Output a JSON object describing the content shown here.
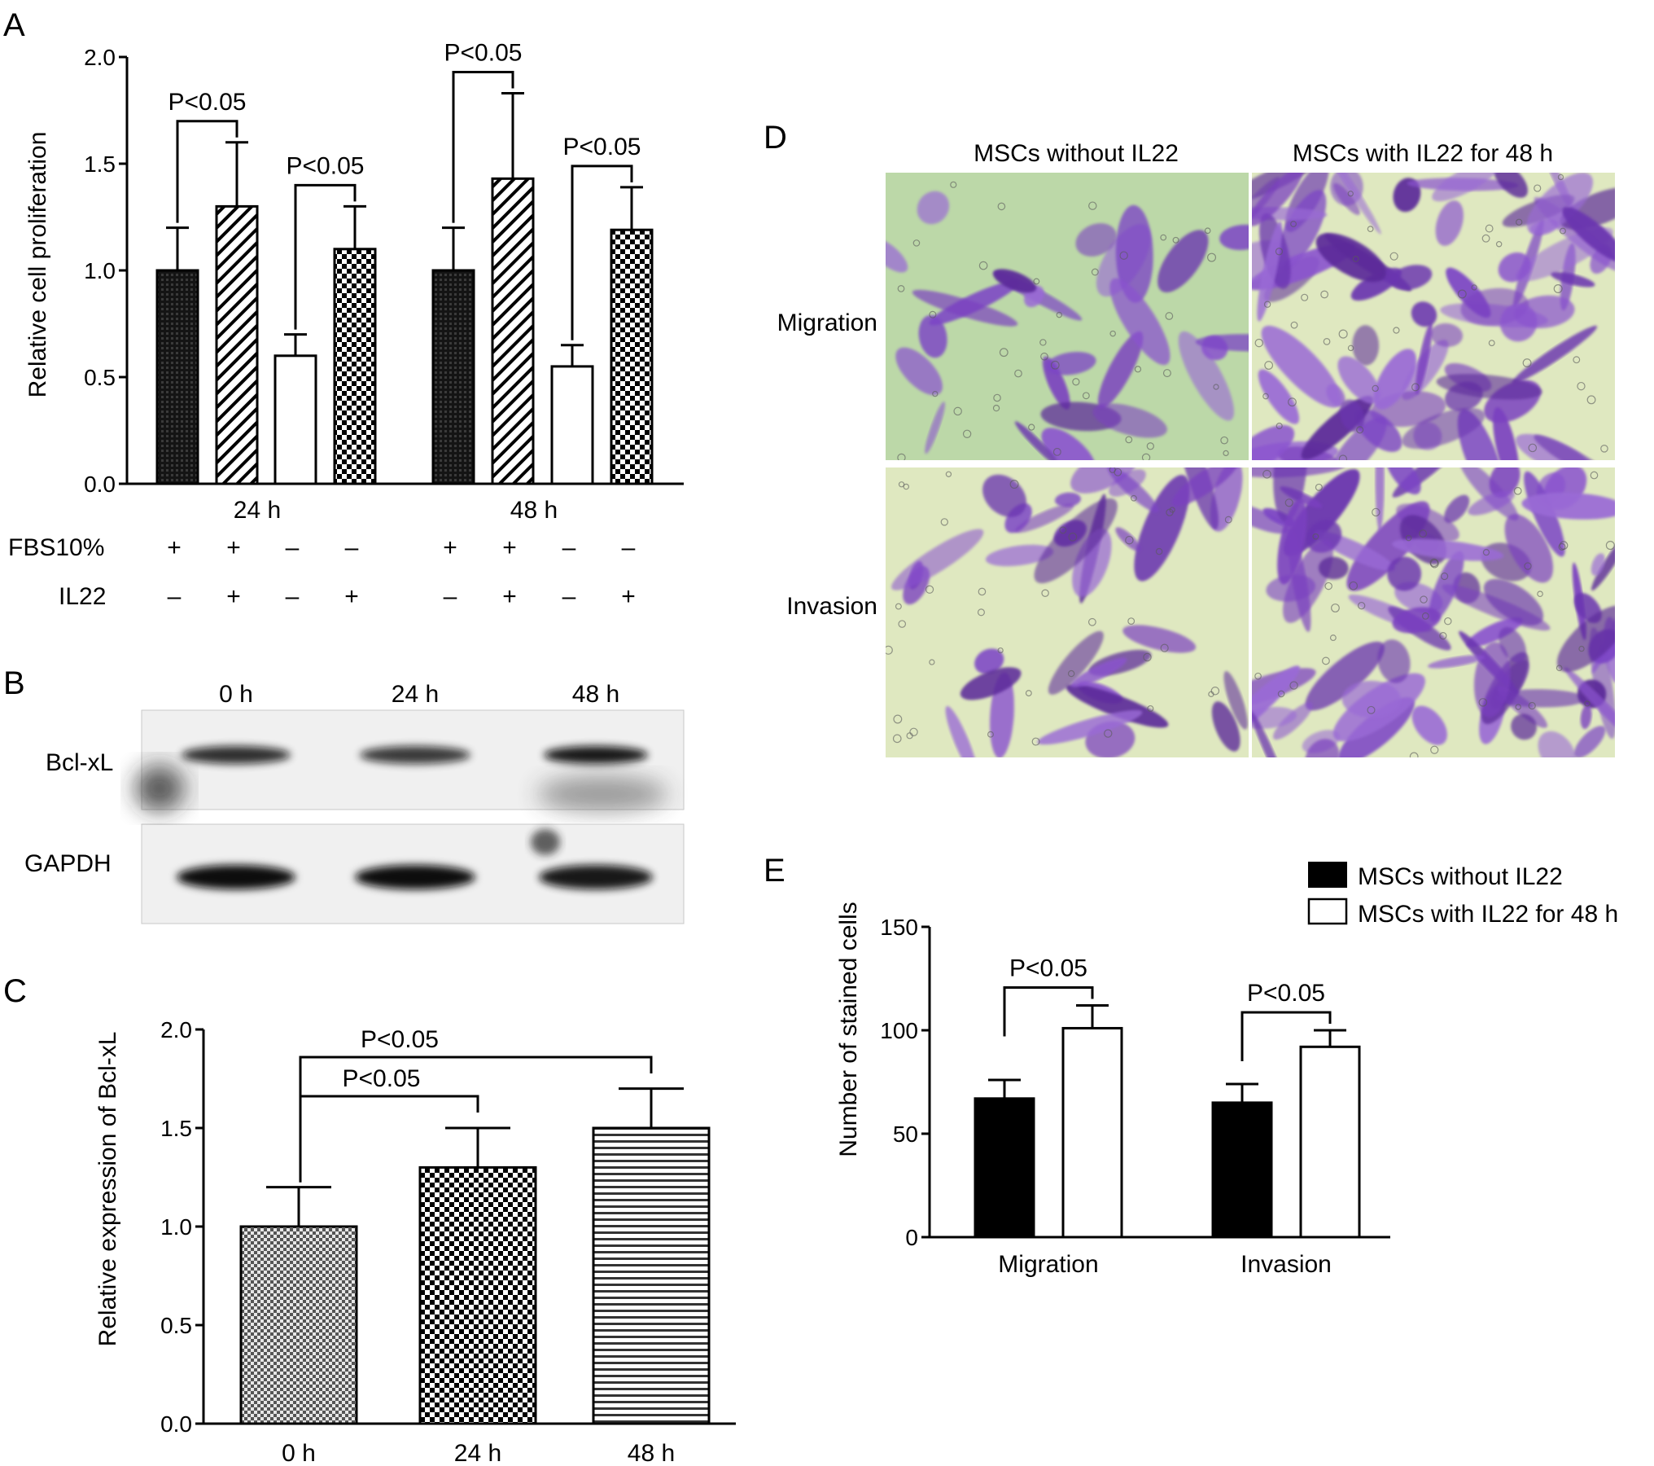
{
  "panel_letters": {
    "a": "A",
    "b": "B",
    "c": "C",
    "d": "D",
    "e": "E"
  },
  "colors": {
    "ink": "#000000",
    "background": "#ffffff",
    "stain_purple": "#7a3fc0",
    "stain_background": "#dfe8c0",
    "migration_pale_green": "#bcd8a8"
  },
  "chart_data": [
    {
      "panel": "A",
      "type": "bar",
      "ylabel": "Relative cell proliferation",
      "xlabel": "",
      "ylim": [
        0,
        2.0
      ],
      "yticks": [
        "0.0",
        "0.5",
        "1.0",
        "1.5",
        "2.0"
      ],
      "groups": [
        "24 h",
        "48 h"
      ],
      "bar_patterns": [
        "dark",
        "diagonal",
        "white",
        "checker"
      ],
      "bars": [
        {
          "group": "24 h",
          "value": 1.0,
          "error": 0.2
        },
        {
          "group": "24 h",
          "value": 1.3,
          "error": 0.3
        },
        {
          "group": "24 h",
          "value": 0.6,
          "error": 0.1
        },
        {
          "group": "24 h",
          "value": 1.1,
          "error": 0.2
        },
        {
          "group": "48 h",
          "value": 1.0,
          "error": 0.2
        },
        {
          "group": "48 h",
          "value": 1.43,
          "error": 0.4
        },
        {
          "group": "48 h",
          "value": 0.55,
          "error": 0.1
        },
        {
          "group": "48 h",
          "value": 1.19,
          "error": 0.2
        }
      ],
      "conditions": [
        {
          "label": "FBS10%",
          "values": [
            "+",
            "+",
            "–",
            "–",
            "+",
            "+",
            "–",
            "–"
          ]
        },
        {
          "label": "IL22",
          "values": [
            "–",
            "+",
            "–",
            "+",
            "–",
            "+",
            "–",
            "+"
          ]
        }
      ],
      "annotations": [
        {
          "from": 0,
          "to": 1,
          "text": "P<0.05"
        },
        {
          "from": 2,
          "to": 3,
          "text": "P<0.05"
        },
        {
          "from": 4,
          "to": 5,
          "text": "P<0.05"
        },
        {
          "from": 6,
          "to": 7,
          "text": "P<0.05"
        }
      ]
    },
    {
      "panel": "C",
      "type": "bar",
      "ylabel": "Relative expression of Bcl-xL",
      "xlabel": "",
      "ylim": [
        0,
        2.0
      ],
      "yticks": [
        "0.0",
        "0.5",
        "1.0",
        "1.5",
        "2.0"
      ],
      "categories": [
        "0 h",
        "24 h",
        "48 h"
      ],
      "values": [
        1.0,
        1.3,
        1.5
      ],
      "errors": [
        0.2,
        0.2,
        0.2
      ],
      "bar_patterns": [
        "finecheck",
        "checker",
        "hstripe"
      ],
      "annotations": [
        {
          "from": 0,
          "to": 1,
          "text": "P<0.05"
        },
        {
          "from": 0,
          "to": 2,
          "text": "P<0.05"
        }
      ]
    },
    {
      "panel": "E",
      "type": "bar",
      "ylabel": "Number of stained cells",
      "xlabel": "",
      "ylim": [
        0,
        150
      ],
      "yticks": [
        "0",
        "50",
        "100",
        "150"
      ],
      "categories": [
        "Migration",
        "Invasion"
      ],
      "series": [
        {
          "name": "MSCs without IL22",
          "color": "#000000",
          "values": [
            67,
            65
          ],
          "errors": [
            9,
            9
          ]
        },
        {
          "name": "MSCs with IL22 for 48 h",
          "color": "#ffffff",
          "values": [
            101,
            92
          ],
          "errors": [
            11,
            8
          ]
        }
      ],
      "legend_position": "top-right",
      "annotations": [
        {
          "category": 0,
          "text": "P<0.05"
        },
        {
          "category": 1,
          "text": "P<0.05"
        }
      ]
    }
  ],
  "blot": {
    "timepoints": [
      "0 h",
      "24 h",
      "48 h"
    ],
    "rows": [
      {
        "label": "Bcl-xL",
        "intensities": [
          0.85,
          0.8,
          0.95
        ]
      },
      {
        "label": "GAPDH",
        "intensities": [
          1.0,
          1.0,
          0.95
        ]
      }
    ]
  },
  "micrographs": {
    "columns": [
      "MSCs without IL22",
      "MSCs with IL22 for 48 h"
    ],
    "rows": [
      "Migration",
      "Invasion"
    ]
  }
}
